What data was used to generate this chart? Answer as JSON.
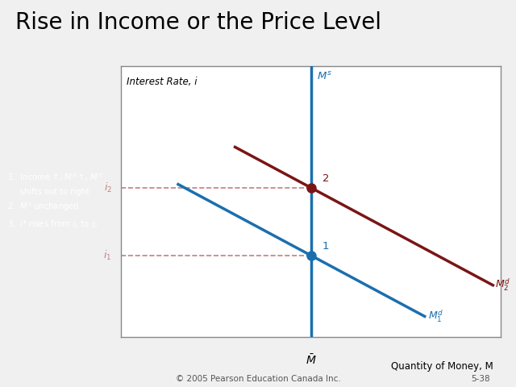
{
  "title": "Rise in Income or the Price Level",
  "title_fontsize": 20,
  "bg_color": "#f0f0f0",
  "chart_bg": "#ffffff",
  "border_color": "#888888",
  "xlabel": "Quantity of Money, M",
  "ylabel": "Interest Rate, i",
  "ms_color": "#1a6faf",
  "md1_color": "#1a6faf",
  "md2_color": "#7b1515",
  "dashed_color": "#c08080",
  "point1_color": "#1a6faf",
  "point2_color": "#7b1515",
  "footnote": "© 2005 Pearson Education Canada Inc.",
  "footnote_color": "#555555",
  "slide_number": "5-38",
  "annotation_box_color": "#5b9bd5",
  "annotation_text_color": "#ffffff",
  "ms_x": 5,
  "md1_slope": -0.75,
  "md1_intercept": 6.75,
  "md2_slope": -0.75,
  "md2_intercept": 9.25,
  "xlim": [
    0,
    10
  ],
  "ylim": [
    0,
    10
  ],
  "xbar_label": "$\\bar{M}$",
  "ms_label": "$M^s$",
  "md1_label": "$M_1^d$",
  "md2_label": "$M_2^d$",
  "i1_label": "$i_1$",
  "i2_label": "$i_2$",
  "label1": "1",
  "label2": "2"
}
